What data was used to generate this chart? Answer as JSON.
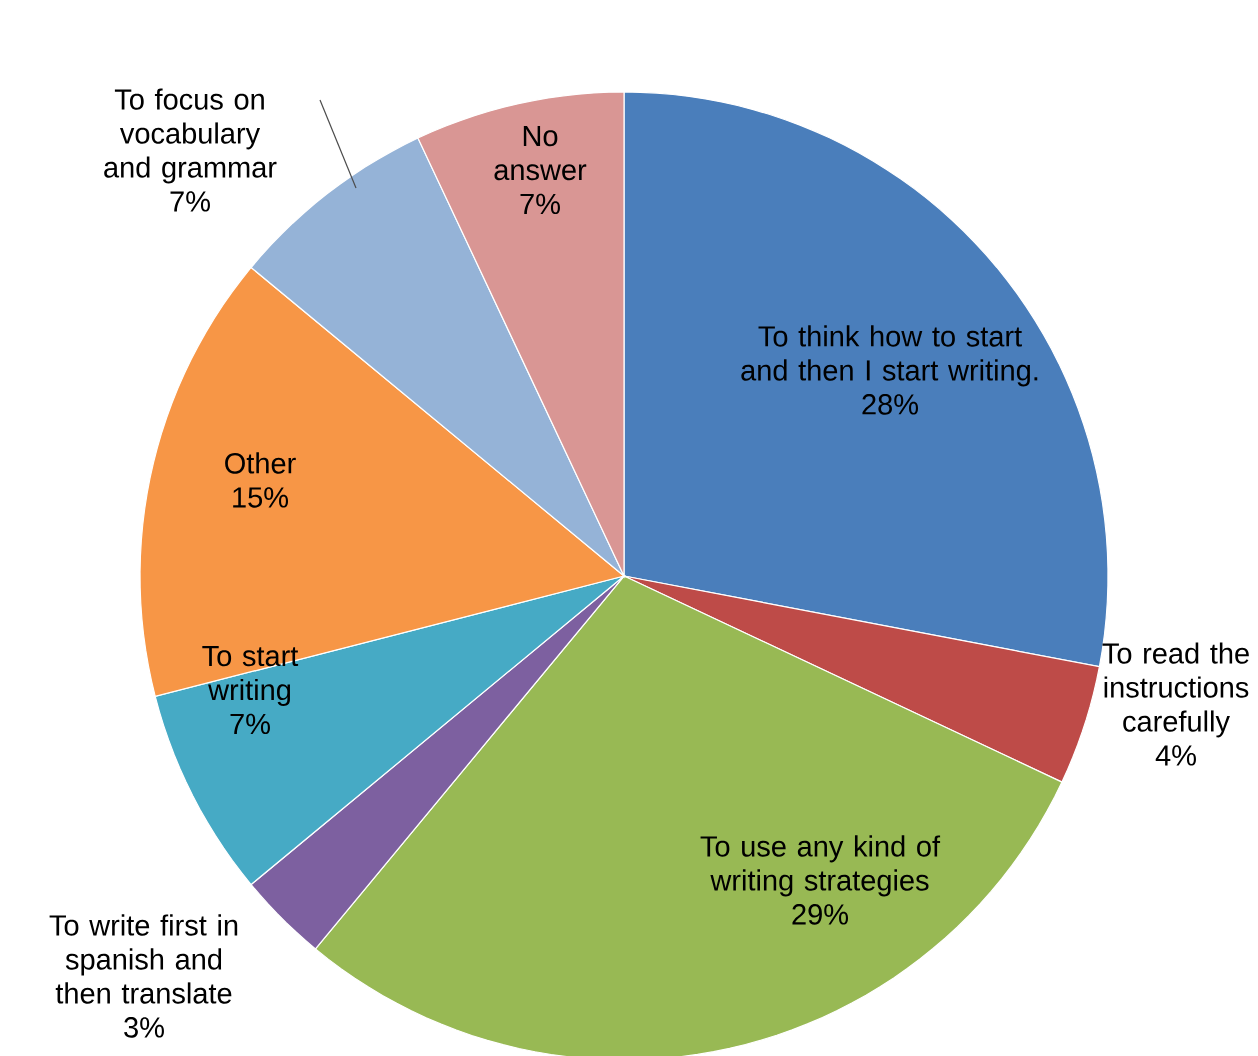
{
  "chart_data": {
    "type": "pie",
    "categories": [
      "To think how to start and then I start writing.",
      "To read the instructions carefully",
      "To use any kind of writing strategies",
      "To write first in spanish and then translate",
      "To start writing",
      "Other",
      "To focus on vocabulary and grammar",
      "No answer"
    ],
    "values": [
      28,
      4,
      29,
      3,
      7,
      15,
      7,
      7
    ],
    "value_labels": [
      "28%",
      "4%",
      "29%",
      "3%",
      "7%",
      "15%",
      "7%",
      "7%"
    ],
    "colors": [
      "#4a7ebb",
      "#be4b48",
      "#98b954",
      "#7d60a0",
      "#46aac5",
      "#f79646",
      "#95b3d7",
      "#d99694"
    ]
  }
}
